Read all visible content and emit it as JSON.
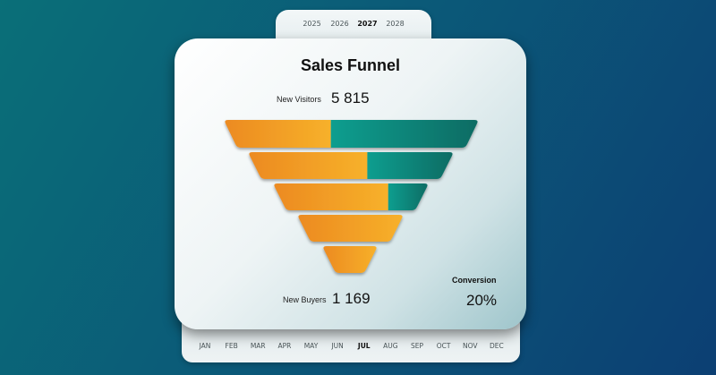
{
  "years": [
    {
      "label": "2025",
      "active": false
    },
    {
      "label": "2026",
      "active": false
    },
    {
      "label": "2027",
      "active": true
    },
    {
      "label": "2028",
      "active": false
    }
  ],
  "months": [
    {
      "label": "JAN",
      "active": false
    },
    {
      "label": "FEB",
      "active": false
    },
    {
      "label": "MAR",
      "active": false
    },
    {
      "label": "APR",
      "active": false
    },
    {
      "label": "MAY",
      "active": false
    },
    {
      "label": "JUN",
      "active": false
    },
    {
      "label": "JUL",
      "active": true
    },
    {
      "label": "AUG",
      "active": false
    },
    {
      "label": "SEP",
      "active": false
    },
    {
      "label": "OCT",
      "active": false
    },
    {
      "label": "NOV",
      "active": false
    },
    {
      "label": "DEC",
      "active": false
    }
  ],
  "card": {
    "title": "Sales Funnel",
    "top_metric": {
      "label": "New Visitors",
      "value": "5 815"
    },
    "bottom_metric": {
      "label": "New Buyers",
      "value": "1 169"
    },
    "conversion": {
      "label": "Conversion",
      "value": "20%"
    }
  },
  "funnel": {
    "colors": {
      "orange_start": "#ec8a21",
      "orange_end": "#f7b12a",
      "teal_start": "#0e9e8f",
      "teal_end": "#0b6b63"
    },
    "stages": [
      {
        "filled_fraction": 0.42
      },
      {
        "filled_fraction": 0.58
      },
      {
        "filled_fraction": 0.74
      },
      {
        "filled_fraction": 1.0
      },
      {
        "filled_fraction": 1.0
      }
    ]
  }
}
